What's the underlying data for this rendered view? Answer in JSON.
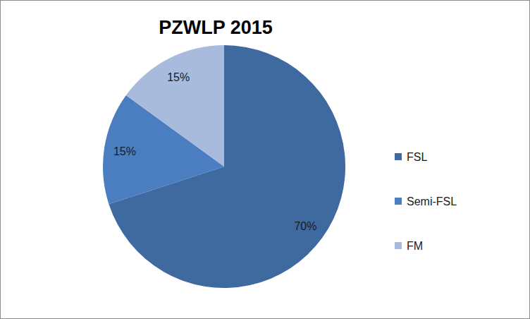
{
  "chart_data": {
    "type": "pie",
    "title": "PZWLP 2015",
    "categories": [
      "FSL",
      "Semi-FSL",
      "FM"
    ],
    "values": [
      70,
      15,
      15
    ],
    "value_labels": [
      "70%",
      "15%",
      "15%"
    ],
    "colors": [
      "#3f6aa0",
      "#4a7ec0",
      "#a9bbdc"
    ],
    "data_labels": true,
    "legend": "right"
  }
}
